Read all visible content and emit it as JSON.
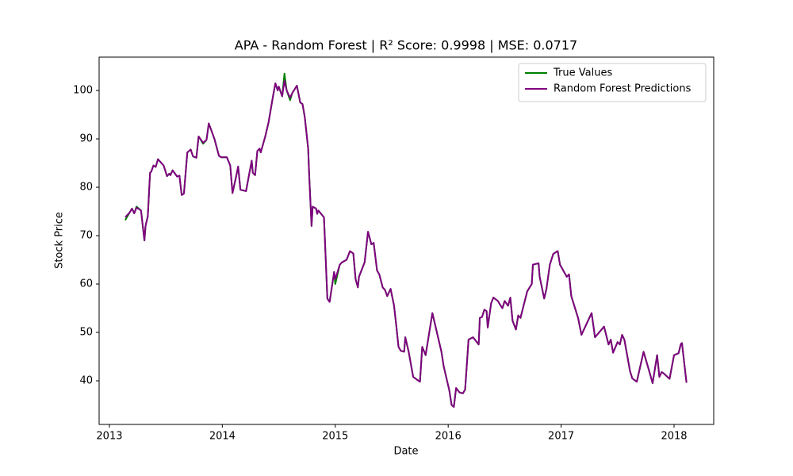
{
  "chart_data": {
    "type": "line",
    "title": "APA - Random Forest | R² Score: 0.9998 | MSE: 0.0717",
    "xlabel": "Date",
    "ylabel": "Stock Price",
    "x": [
      2013.14,
      2013.18,
      2013.2,
      2013.22,
      2013.24,
      2013.28,
      2013.31,
      2013.32,
      2013.34,
      2013.36,
      2013.37,
      2013.39,
      2013.41,
      2013.43,
      2013.48,
      2013.51,
      2013.53,
      2013.54,
      2013.56,
      2013.6,
      2013.62,
      2013.64,
      2013.66,
      2013.69,
      2013.72,
      2013.74,
      2013.77,
      2013.79,
      2013.83,
      2013.86,
      2013.88,
      2013.93,
      2013.97,
      2013.99,
      2014.03,
      2014.04,
      2014.07,
      2014.09,
      2014.12,
      2014.14,
      2014.16,
      2014.21,
      2014.24,
      2014.26,
      2014.27,
      2014.29,
      2014.31,
      2014.33,
      2014.34,
      2014.38,
      2014.41,
      2014.45,
      2014.47,
      2014.49,
      2014.5,
      2014.53,
      2014.55,
      2014.57,
      2014.6,
      2014.62,
      2014.66,
      2014.69,
      2014.71,
      2014.73,
      2014.76,
      2014.77,
      2014.79,
      2014.8,
      2014.83,
      2014.84,
      2014.85,
      2014.9,
      2014.93,
      2014.95,
      2014.99,
      2015.0,
      2015.04,
      2015.06,
      2015.1,
      2015.13,
      2015.16,
      2015.18,
      2015.2,
      2015.21,
      2015.26,
      2015.29,
      2015.32,
      2015.34,
      2015.37,
      2015.39,
      2015.42,
      2015.44,
      2015.46,
      2015.49,
      2015.52,
      2015.54,
      2015.56,
      2015.58,
      2015.61,
      2015.62,
      2015.65,
      2015.69,
      2015.72,
      2015.75,
      2015.77,
      2015.8,
      2015.86,
      2015.91,
      2015.94,
      2015.96,
      2016.01,
      2016.03,
      2016.05,
      2016.07,
      2016.1,
      2016.13,
      2016.15,
      2016.18,
      2016.22,
      2016.27,
      2016.28,
      2016.3,
      2016.32,
      2016.34,
      2016.35,
      2016.38,
      2016.4,
      2016.44,
      2016.46,
      2016.48,
      2016.5,
      2016.53,
      2016.55,
      2016.57,
      2016.6,
      2016.62,
      2016.64,
      2016.7,
      2016.74,
      2016.75,
      2016.8,
      2016.81,
      2016.85,
      2016.87,
      2016.9,
      2016.93,
      2016.96,
      2016.97,
      2016.99,
      2017.05,
      2017.07,
      2017.09,
      2017.15,
      2017.18,
      2017.27,
      2017.3,
      2017.38,
      2017.42,
      2017.44,
      2017.46,
      2017.5,
      2017.52,
      2017.54,
      2017.56,
      2017.61,
      2017.63,
      2017.67,
      2017.73,
      2017.78,
      2017.81,
      2017.85,
      2017.87,
      2017.89,
      2017.91,
      2017.96,
      2018.0,
      2018.04,
      2018.06,
      2018.07,
      2018.11
    ],
    "series": [
      {
        "name": "True Values",
        "color": "#008000",
        "values": [
          73.2,
          74.8,
          75.6,
          74.6,
          76.0,
          75.2,
          69.0,
          72.0,
          74.0,
          83.0,
          83.2,
          84.5,
          84.2,
          85.8,
          84.5,
          82.3,
          82.8,
          82.5,
          83.5,
          82.2,
          82.4,
          78.4,
          78.7,
          87.2,
          87.8,
          86.4,
          86.1,
          90.5,
          89.0,
          89.8,
          93.2,
          90.0,
          86.5,
          86.2,
          86.2,
          86.2,
          84.5,
          78.8,
          82.0,
          84.3,
          79.5,
          79.2,
          83.0,
          85.5,
          83.0,
          82.5,
          87.5,
          88.0,
          87.2,
          90.5,
          93.5,
          99.0,
          101.5,
          100.0,
          100.8,
          98.8,
          103.5,
          100.0,
          98.0,
          99.5,
          101.0,
          97.5,
          97.2,
          94.5,
          88.0,
          82.0,
          72.0,
          76.0,
          75.6,
          74.5,
          75.2,
          73.8,
          57.0,
          56.3,
          62.5,
          60.0,
          64.0,
          64.5,
          65.0,
          66.8,
          66.3,
          61.0,
          59.3,
          61.5,
          64.5,
          70.8,
          68.2,
          68.5,
          62.8,
          62.0,
          59.3,
          58.8,
          57.5,
          59.0,
          55.6,
          51.5,
          47.0,
          46.2,
          46.0,
          49.0,
          46.0,
          40.8,
          40.3,
          39.8,
          47.0,
          45.3,
          54.0,
          49.0,
          46.0,
          43.0,
          38.0,
          35.0,
          34.6,
          38.5,
          37.6,
          37.4,
          38.2,
          48.5,
          49.0,
          47.5,
          53.0,
          53.2,
          54.7,
          54.4,
          51.0,
          56.0,
          57.2,
          56.5,
          55.7,
          55.0,
          56.5,
          55.5,
          57.2,
          52.4,
          50.6,
          53.5,
          53.0,
          58.5,
          60.0,
          64.0,
          64.3,
          61.5,
          57.0,
          59.0,
          64.0,
          66.2,
          66.7,
          66.8,
          64.0,
          61.5,
          62.0,
          57.5,
          53.0,
          49.5,
          54.0,
          49.0,
          51.2,
          47.5,
          48.5,
          45.8,
          48.0,
          47.5,
          49.5,
          48.5,
          42.0,
          40.5,
          39.8,
          46.0,
          42.0,
          39.5,
          45.3,
          40.8,
          41.8,
          41.5,
          40.4,
          45.3,
          45.7,
          47.6,
          47.8,
          39.6
        ]
      },
      {
        "name": "Random Forest Predictions",
        "color": "#800080",
        "values": [
          73.8,
          74.8,
          75.6,
          74.6,
          75.8,
          75.2,
          69.0,
          72.0,
          74.0,
          83.0,
          83.2,
          84.5,
          84.2,
          85.8,
          84.5,
          82.3,
          82.8,
          82.5,
          83.5,
          82.2,
          82.4,
          78.4,
          78.7,
          87.2,
          87.8,
          86.4,
          86.1,
          90.5,
          89.2,
          89.8,
          93.2,
          90.0,
          86.5,
          86.2,
          86.2,
          86.2,
          84.5,
          78.8,
          82.0,
          84.3,
          79.5,
          79.2,
          83.0,
          85.5,
          83.0,
          82.5,
          87.5,
          88.0,
          87.2,
          90.5,
          93.5,
          99.0,
          101.5,
          100.0,
          100.8,
          98.8,
          102.0,
          100.0,
          98.5,
          99.5,
          101.0,
          97.5,
          97.2,
          94.5,
          88.0,
          82.0,
          72.0,
          76.0,
          75.6,
          74.5,
          75.2,
          73.8,
          57.0,
          56.3,
          62.5,
          61.0,
          64.0,
          64.5,
          65.0,
          66.8,
          66.3,
          61.0,
          59.3,
          61.5,
          64.5,
          70.8,
          68.2,
          68.5,
          62.8,
          62.0,
          59.3,
          58.8,
          57.5,
          59.0,
          55.6,
          51.5,
          47.0,
          46.2,
          46.0,
          49.0,
          46.0,
          40.8,
          40.3,
          39.8,
          47.0,
          45.3,
          54.0,
          49.0,
          46.0,
          43.0,
          38.0,
          35.0,
          34.6,
          38.5,
          37.6,
          37.4,
          38.2,
          48.5,
          49.0,
          47.5,
          53.0,
          53.2,
          54.7,
          54.4,
          51.0,
          56.0,
          57.2,
          56.5,
          55.7,
          55.0,
          56.5,
          55.5,
          57.2,
          52.4,
          50.6,
          53.5,
          53.0,
          58.5,
          60.0,
          64.0,
          64.3,
          61.5,
          57.0,
          59.0,
          64.0,
          66.2,
          66.7,
          66.8,
          64.0,
          61.5,
          62.0,
          57.5,
          53.0,
          49.5,
          54.0,
          49.0,
          51.2,
          47.5,
          48.5,
          45.8,
          48.0,
          47.5,
          49.5,
          48.5,
          42.0,
          40.5,
          39.8,
          46.0,
          42.0,
          39.5,
          45.3,
          40.8,
          41.8,
          41.5,
          40.4,
          45.3,
          45.7,
          47.6,
          47.8,
          39.6
        ]
      }
    ],
    "xlim": [
      2012.909,
      2018.351
    ],
    "xticks": [
      2013,
      2014,
      2015,
      2016,
      2017,
      2018
    ],
    "ylim": [
      30.98,
      106.9
    ],
    "yticks": [
      40,
      50,
      60,
      70,
      80,
      90,
      100
    ],
    "legend": "upper right",
    "grid": false
  }
}
